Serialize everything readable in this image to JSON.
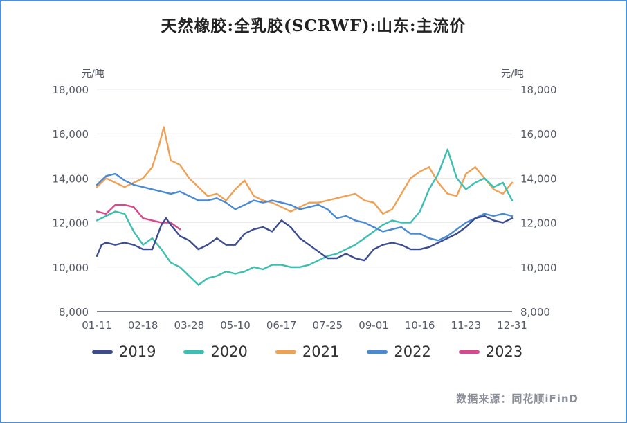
{
  "chart_data": {
    "type": "line",
    "title": "天然橡胶:全乳胶(SCRWF):山东:主流价",
    "y_unit_left": "元/吨",
    "y_unit_right": "元/吨",
    "ylim": [
      8000,
      18000
    ],
    "y_ticks": [
      "8,000",
      "10,000",
      "12,000",
      "14,000",
      "16,000",
      "18,000"
    ],
    "y_tick_values": [
      8000,
      10000,
      12000,
      14000,
      16000,
      18000
    ],
    "x_ticks": [
      "01-11",
      "02-18",
      "03-28",
      "05-10",
      "06-17",
      "07-25",
      "09-01",
      "10-16",
      "11-23",
      "12-31"
    ],
    "x_tick_positions": [
      0,
      1,
      2,
      3,
      4,
      5,
      6,
      7,
      8,
      9
    ],
    "x_note": "x is position along the calendar year measured in tick-label intervals (0 = 01-11, 9 = 12-31)",
    "grid": true,
    "legend_position": "bottom",
    "series": [
      {
        "name": "2019",
        "color": "#3c4c90",
        "x": [
          0,
          0.1,
          0.2,
          0.4,
          0.6,
          0.8,
          1.0,
          1.2,
          1.4,
          1.5,
          1.6,
          1.8,
          2.0,
          2.2,
          2.4,
          2.6,
          2.8,
          3.0,
          3.2,
          3.4,
          3.6,
          3.8,
          4.0,
          4.2,
          4.4,
          4.6,
          4.8,
          5.0,
          5.2,
          5.4,
          5.6,
          5.8,
          6.0,
          6.2,
          6.4,
          6.6,
          6.8,
          7.0,
          7.2,
          7.4,
          7.6,
          7.8,
          8.0,
          8.2,
          8.4,
          8.6,
          8.8,
          9.0
        ],
        "values": [
          10500,
          11000,
          11100,
          11000,
          11100,
          11000,
          10800,
          10800,
          11900,
          12200,
          11900,
          11400,
          11200,
          10800,
          11000,
          11300,
          11000,
          11000,
          11500,
          11700,
          11800,
          11600,
          12100,
          11800,
          11300,
          11000,
          10700,
          10400,
          10400,
          10600,
          10400,
          10300,
          10800,
          11000,
          11100,
          11000,
          10800,
          10800,
          10900,
          11100,
          11300,
          11500,
          11800,
          12200,
          12300,
          12100,
          12000,
          12200
        ]
      },
      {
        "name": "2020",
        "color": "#3cbfb0",
        "x": [
          0,
          0.2,
          0.4,
          0.6,
          0.8,
          1.0,
          1.2,
          1.4,
          1.6,
          1.8,
          2.0,
          2.2,
          2.4,
          2.6,
          2.8,
          3.0,
          3.2,
          3.4,
          3.6,
          3.8,
          4.0,
          4.2,
          4.4,
          4.6,
          4.8,
          5.0,
          5.2,
          5.4,
          5.6,
          5.8,
          6.0,
          6.2,
          6.4,
          6.6,
          6.8,
          7.0,
          7.2,
          7.4,
          7.6,
          7.8,
          8.0,
          8.2,
          8.4,
          8.6,
          8.8,
          9.0
        ],
        "values": [
          12100,
          12300,
          12500,
          12400,
          11600,
          11000,
          11300,
          10800,
          10200,
          10000,
          9600,
          9200,
          9500,
          9600,
          9800,
          9700,
          9800,
          10000,
          9900,
          10100,
          10100,
          10000,
          10000,
          10100,
          10300,
          10500,
          10600,
          10800,
          11000,
          11300,
          11600,
          11900,
          12100,
          12000,
          12000,
          12500,
          13500,
          14200,
          15300,
          14000,
          13500,
          13800,
          14000,
          13600,
          13800,
          13000
        ]
      },
      {
        "name": "2021",
        "color": "#f0a054",
        "x": [
          0,
          0.2,
          0.4,
          0.6,
          0.8,
          1.0,
          1.2,
          1.35,
          1.45,
          1.6,
          1.8,
          2.0,
          2.2,
          2.4,
          2.6,
          2.8,
          3.0,
          3.2,
          3.4,
          3.6,
          3.8,
          4.0,
          4.2,
          4.4,
          4.6,
          4.8,
          5.0,
          5.2,
          5.4,
          5.6,
          5.8,
          6.0,
          6.2,
          6.4,
          6.6,
          6.8,
          7.0,
          7.2,
          7.4,
          7.6,
          7.8,
          8.0,
          8.2,
          8.4,
          8.6,
          8.8,
          9.0
        ],
        "values": [
          13600,
          14000,
          13800,
          13600,
          13800,
          14000,
          14500,
          15500,
          16300,
          14800,
          14600,
          14000,
          13600,
          13200,
          13300,
          13000,
          13500,
          13900,
          13200,
          13000,
          12900,
          12700,
          12500,
          12700,
          12900,
          12900,
          13000,
          13100,
          13200,
          13300,
          13000,
          12900,
          12400,
          12600,
          13300,
          14000,
          14300,
          14500,
          13800,
          13300,
          13200,
          14200,
          14500,
          14000,
          13500,
          13300,
          13800
        ]
      },
      {
        "name": "2022",
        "color": "#4a8ad4",
        "x": [
          0,
          0.2,
          0.4,
          0.6,
          0.8,
          1.0,
          1.2,
          1.4,
          1.6,
          1.8,
          2.0,
          2.2,
          2.4,
          2.6,
          2.8,
          3.0,
          3.2,
          3.4,
          3.6,
          3.8,
          4.0,
          4.2,
          4.4,
          4.6,
          4.8,
          5.0,
          5.2,
          5.4,
          5.6,
          5.8,
          6.0,
          6.2,
          6.4,
          6.6,
          6.8,
          7.0,
          7.2,
          7.4,
          7.6,
          7.8,
          8.0,
          8.2,
          8.4,
          8.6,
          8.8,
          9.0
        ],
        "values": [
          13700,
          14100,
          14200,
          13900,
          13700,
          13600,
          13500,
          13400,
          13300,
          13400,
          13200,
          13000,
          13000,
          13100,
          12900,
          12600,
          12800,
          13000,
          12900,
          13000,
          12900,
          12800,
          12600,
          12700,
          12800,
          12600,
          12200,
          12300,
          12100,
          12000,
          11800,
          11600,
          11700,
          11800,
          11500,
          11500,
          11300,
          11200,
          11400,
          11700,
          12000,
          12200,
          12400,
          12300,
          12400,
          12300
        ]
      },
      {
        "name": "2023",
        "color": "#d8488c",
        "x": [
          0,
          0.2,
          0.4,
          0.6,
          0.8,
          1.0,
          1.2,
          1.4,
          1.6,
          1.8
        ],
        "values": [
          12500,
          12400,
          12800,
          12800,
          12700,
          12200,
          12100,
          12000,
          12000,
          11700
        ]
      }
    ]
  },
  "legend": [
    {
      "label": "2019",
      "color": "#3c4c90"
    },
    {
      "label": "2020",
      "color": "#3cbfb0"
    },
    {
      "label": "2021",
      "color": "#f0a054"
    },
    {
      "label": "2022",
      "color": "#4a8ad4"
    },
    {
      "label": "2023",
      "color": "#d8488c"
    }
  ],
  "source": "数据来源：同花顺iFinD",
  "colors": {
    "grid": "#e6e9f0",
    "axis": "#7a7f8c",
    "frame": "#4a90d9"
  }
}
